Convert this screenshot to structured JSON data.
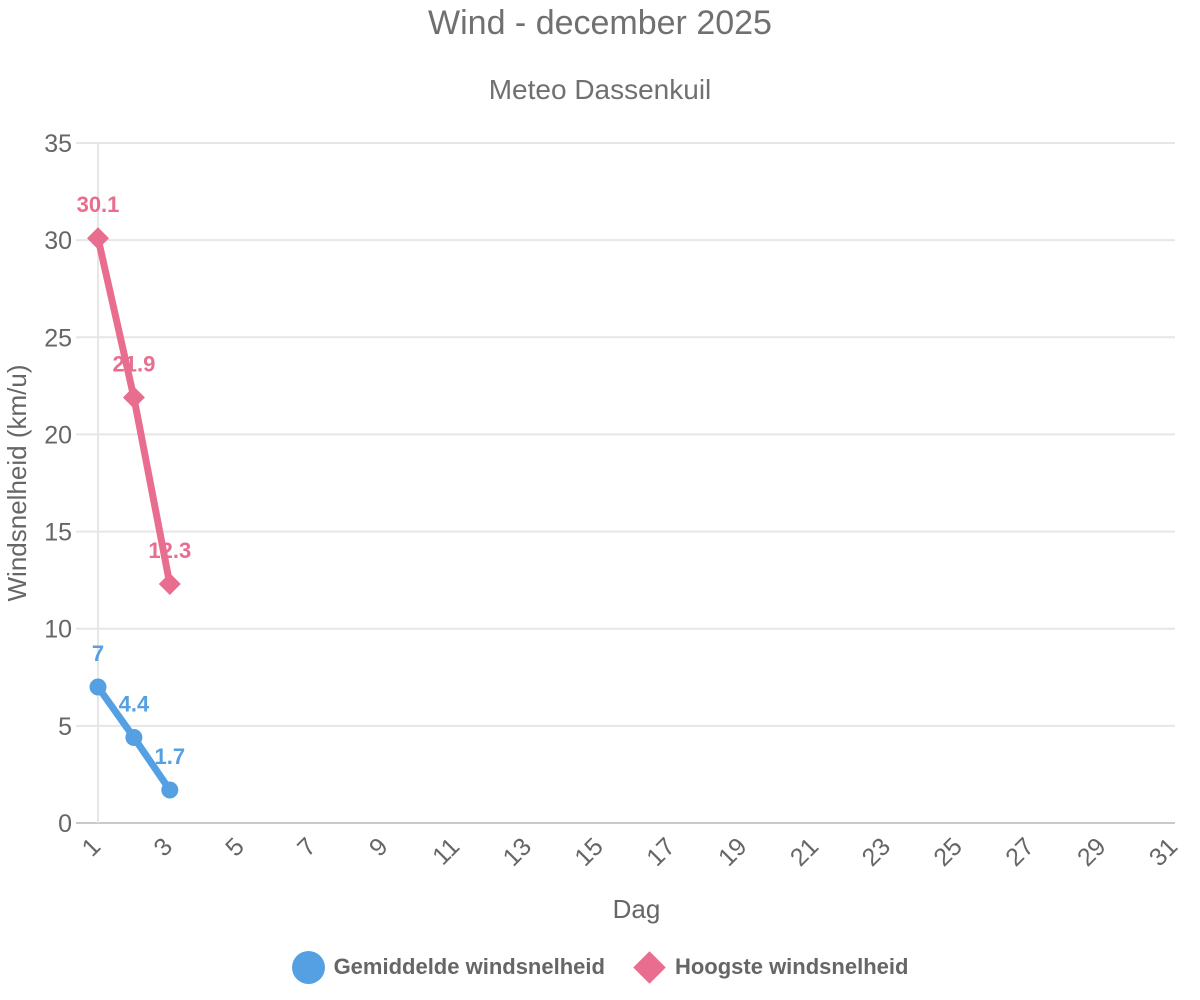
{
  "header": {
    "title": "Wind - december 2025",
    "subtitle": "Meteo Dassenkuil"
  },
  "chart_data": {
    "type": "line",
    "title": "Wind - december 2025",
    "subtitle": "Meteo Dassenkuil",
    "xlabel": "Dag",
    "ylabel": "Windsnelheid (km/u)",
    "x": [
      1,
      2,
      3
    ],
    "series": [
      {
        "name": "Gemiddelde windsnelheid",
        "color": "#55A0E3",
        "marker": "circle",
        "values": [
          7,
          4.4,
          1.7
        ],
        "labels": [
          "7",
          "4.4",
          "1.7"
        ]
      },
      {
        "name": "Hoogste windsnelheid",
        "color": "#E96D8E",
        "marker": "diamond",
        "values": [
          30.1,
          21.9,
          12.3
        ],
        "labels": [
          "30.1",
          "21.9",
          "12.3"
        ]
      }
    ],
    "xlim": [
      1,
      31
    ],
    "ylim": [
      0,
      35
    ],
    "x_ticks": [
      1,
      3,
      5,
      7,
      9,
      11,
      13,
      15,
      17,
      19,
      21,
      23,
      25,
      27,
      29,
      31
    ],
    "y_ticks": [
      0,
      5,
      10,
      15,
      20,
      25,
      30,
      35
    ],
    "grid": "horizontal",
    "legend_position": "bottom"
  },
  "colors": {
    "grid_line": "#E6E6E6",
    "axis_line": "#C9C9C9",
    "text": "#666666",
    "title_text": "#707070",
    "background": "#FFFFFF"
  }
}
